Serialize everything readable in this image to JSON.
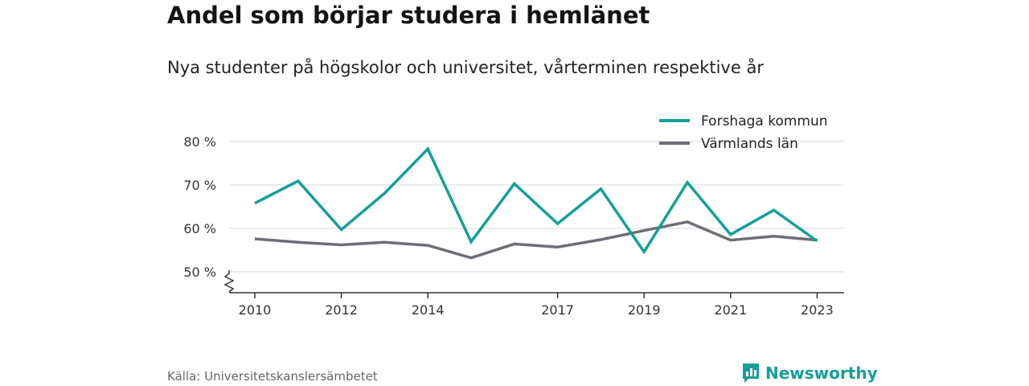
{
  "title": "Andel som börjar studera i hemlänet",
  "subtitle": "Nya studenter på högskolor och universitet, vårterminen respektive år",
  "source": "Källa: Universitetskanslersämbetet",
  "brand": "Newsworthy",
  "colors": {
    "brand": "#15a099",
    "series_primary": "#15a099",
    "series_secondary": "#6f6e76"
  },
  "chart_data": {
    "type": "line",
    "title": "Andel som börjar studera i hemlänet",
    "ylim": [
      45,
      82
    ],
    "yticks": [
      50,
      60,
      70,
      80
    ],
    "ytick_labels": [
      "50 %",
      "60 %",
      "70 %",
      "80 %"
    ],
    "xticks": [
      2010,
      2012,
      2014,
      2017,
      2019,
      2021,
      2023
    ],
    "x": [
      2010,
      2011,
      2012,
      2013,
      2014,
      2015,
      2016,
      2017,
      2018,
      2019,
      2020,
      2021,
      2022,
      2023
    ],
    "grid": true,
    "axis_break": true,
    "legend_position": "top-right",
    "series": [
      {
        "name": "Forshaga kommun",
        "color": "#15a099",
        "values": [
          65.8,
          70.9,
          59.7,
          68.1,
          78.3,
          56.9,
          70.3,
          61.1,
          69.1,
          54.6,
          70.6,
          58.6,
          64.2,
          57.1
        ]
      },
      {
        "name": "Värmlands län",
        "color": "#6f6e76",
        "values": [
          57.6,
          56.8,
          56.2,
          56.8,
          56.1,
          53.2,
          56.4,
          55.7,
          57.4,
          59.5,
          61.5,
          57.3,
          58.2,
          57.3
        ]
      }
    ]
  }
}
